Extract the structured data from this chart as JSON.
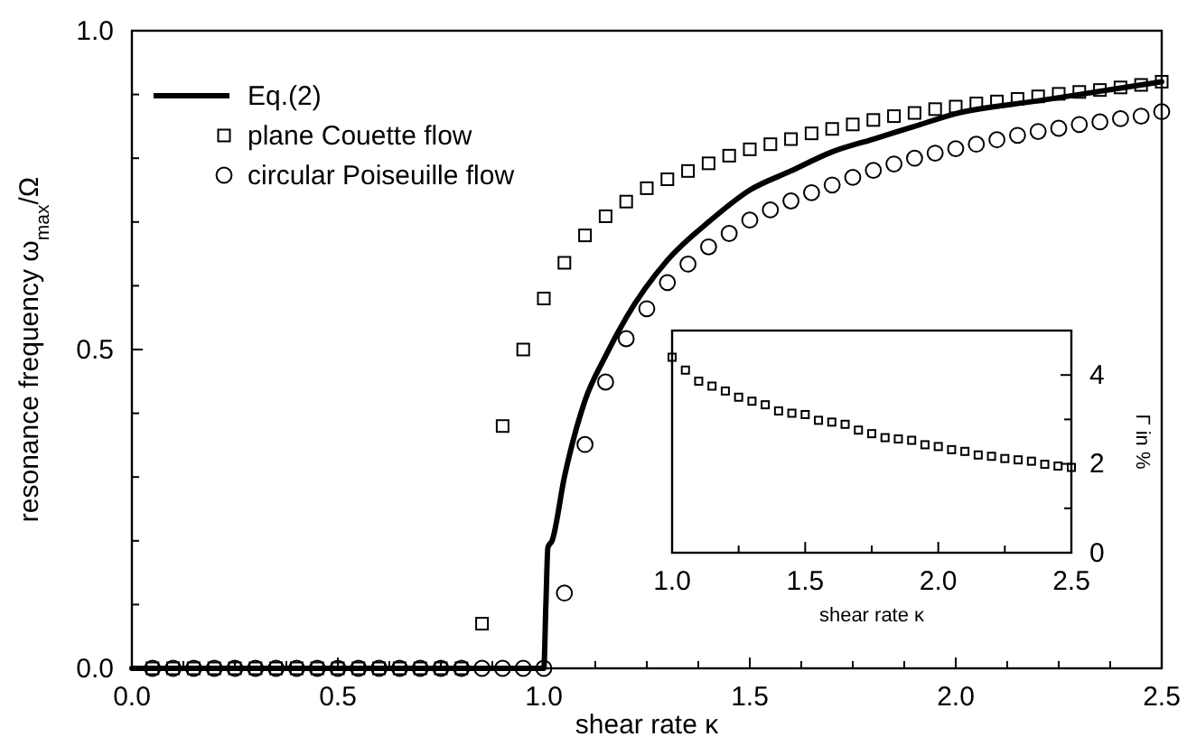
{
  "chart_data": [
    {
      "type": "scatter",
      "xlabel": "shear rate κ",
      "ylabel": "resonance frequency ω$_{max}$/Ω",
      "legend": "top left",
      "xlim": [
        0,
        2.5
      ],
      "ylim": [
        0,
        1
      ],
      "xticks": [
        {
          "value": 0,
          "label": "0.0"
        },
        {
          "value": 0.125,
          "label": null
        },
        {
          "value": 0.25,
          "label": null
        },
        {
          "value": 0.375,
          "label": null
        },
        {
          "value": 0.5,
          "label": "0.5"
        },
        {
          "value": 0.625,
          "label": null
        },
        {
          "value": 0.75,
          "label": null
        },
        {
          "value": 0.875,
          "label": null
        },
        {
          "value": 1,
          "label": "1.0"
        },
        {
          "value": 1.125,
          "label": null
        },
        {
          "value": 1.25,
          "label": null
        },
        {
          "value": 1.375,
          "label": null
        },
        {
          "value": 1.5,
          "label": "1.5"
        },
        {
          "value": 1.625,
          "label": null
        },
        {
          "value": 1.75,
          "label": null
        },
        {
          "value": 1.875,
          "label": null
        },
        {
          "value": 2,
          "label": "2.0"
        },
        {
          "value": 2.125,
          "label": null
        },
        {
          "value": 2.25,
          "label": null
        },
        {
          "value": 2.375,
          "label": null
        },
        {
          "value": 2.5,
          "label": "2.5"
        }
      ],
      "yticks": [
        {
          "value": 0,
          "label": "0.0"
        },
        {
          "value": 0.1,
          "label": null
        },
        {
          "value": 0.2,
          "label": null
        },
        {
          "value": 0.3,
          "label": null
        },
        {
          "value": 0.4,
          "label": null
        },
        {
          "value": 0.5,
          "label": "0.5"
        },
        {
          "value": 0.6,
          "label": null
        },
        {
          "value": 0.7,
          "label": null
        },
        {
          "value": 0.8,
          "label": null
        },
        {
          "value": 0.9,
          "label": null
        },
        {
          "value": 1,
          "label": "1.0"
        }
      ],
      "series": [
        {
          "name": "Eq.(2)",
          "type": "line",
          "color": "#000000",
          "x": [
            0,
            1,
            1.005,
            1.01,
            1.02,
            1.05,
            1.1,
            1.15,
            1.2,
            1.3,
            1.4,
            1.5,
            1.6,
            1.7,
            1.8,
            1.9,
            2,
            2.2,
            2.4,
            2.5
          ],
          "values": [
            0,
            0,
            0.1,
            0.19,
            0.2,
            0.3,
            0.42,
            0.49,
            0.55,
            0.64,
            0.7,
            0.75,
            0.78,
            0.81,
            0.83,
            0.85,
            0.87,
            0.89,
            0.91,
            0.92
          ]
        },
        {
          "name": "plane Couette flow",
          "marker": "square",
          "color": "#000000",
          "x": [
            0.05,
            0.1,
            0.15,
            0.2,
            0.25,
            0.3,
            0.35,
            0.4,
            0.45,
            0.5,
            0.55,
            0.6,
            0.65,
            0.7,
            0.75,
            0.8,
            0.85,
            0.9,
            0.95,
            1,
            1.05,
            1.1,
            1.15,
            1.2,
            1.25,
            1.3,
            1.35,
            1.4,
            1.45,
            1.5,
            1.55,
            1.6,
            1.65,
            1.7,
            1.75,
            1.8,
            1.85,
            1.9,
            1.95,
            2,
            2.05,
            2.1,
            2.15,
            2.2,
            2.25,
            2.3,
            2.35,
            2.4,
            2.45,
            2.5
          ],
          "values": [
            0,
            0,
            0,
            0,
            0,
            0,
            0,
            0,
            0,
            0,
            0,
            0,
            0,
            0,
            0,
            0,
            0.07,
            0.38,
            0.5,
            0.58,
            0.636,
            0.679,
            0.709,
            0.732,
            0.753,
            0.767,
            0.78,
            0.792,
            0.804,
            0.814,
            0.822,
            0.83,
            0.839,
            0.846,
            0.853,
            0.86,
            0.866,
            0.871,
            0.877,
            0.881,
            0.886,
            0.889,
            0.893,
            0.897,
            0.901,
            0.904,
            0.907,
            0.911,
            0.915,
            0.92
          ]
        },
        {
          "name": "circular Poiseuille flow",
          "marker": "circle",
          "color": "#000000",
          "x": [
            0.05,
            0.1,
            0.15,
            0.2,
            0.25,
            0.3,
            0.35,
            0.4,
            0.45,
            0.5,
            0.55,
            0.6,
            0.65,
            0.7,
            0.75,
            0.8,
            0.85,
            0.9,
            0.95,
            1,
            1.05,
            1.1,
            1.15,
            1.2,
            1.25,
            1.3,
            1.35,
            1.4,
            1.45,
            1.5,
            1.55,
            1.6,
            1.65,
            1.7,
            1.75,
            1.8,
            1.85,
            1.9,
            1.95,
            2,
            2.05,
            2.1,
            2.15,
            2.2,
            2.25,
            2.3,
            2.35,
            2.4,
            2.45,
            2.5
          ],
          "values": [
            0,
            0,
            0,
            0,
            0,
            0,
            0,
            0,
            0,
            0,
            0,
            0,
            0,
            0,
            0,
            0,
            0,
            0,
            0,
            0,
            0.118,
            0.351,
            0.449,
            0.517,
            0.564,
            0.605,
            0.634,
            0.661,
            0.682,
            0.703,
            0.719,
            0.733,
            0.746,
            0.758,
            0.77,
            0.781,
            0.791,
            0.8,
            0.808,
            0.815,
            0.822,
            0.829,
            0.836,
            0.842,
            0.847,
            0.853,
            0.857,
            0.862,
            0.866,
            0.873
          ]
        }
      ]
    },
    {
      "type": "scatter",
      "marker": "square",
      "xlabel": "shear rate κ",
      "ylabel": "Γ in %",
      "xlim": [
        1,
        2.5
      ],
      "ylim": [
        0,
        5
      ],
      "xticks": [
        {
          "value": 1,
          "label": "1.0"
        },
        {
          "value": 1.25,
          "label": null
        },
        {
          "value": 1.5,
          "label": "1.5"
        },
        {
          "value": 1.75,
          "label": null
        },
        {
          "value": 2,
          "label": "2.0"
        },
        {
          "value": 2.25,
          "label": null
        },
        {
          "value": 2.5,
          "label": "2.5"
        }
      ],
      "yticks": [
        0,
        {
          "value": 1,
          "label": null
        },
        2,
        {
          "value": 3,
          "label": null
        },
        4
      ],
      "series": [
        {
          "color": "#000000",
          "x": [
            1,
            1.05,
            1.1,
            1.15,
            1.2,
            1.25,
            1.3,
            1.35,
            1.4,
            1.45,
            1.5,
            1.55,
            1.6,
            1.65,
            1.7,
            1.75,
            1.8,
            1.85,
            1.9,
            1.95,
            2,
            2.05,
            2.1,
            2.15,
            2.2,
            2.25,
            2.3,
            2.35,
            2.4,
            2.45,
            2.5
          ],
          "values": [
            4.4,
            4.11,
            3.86,
            3.75,
            3.64,
            3.5,
            3.41,
            3.33,
            3.19,
            3.14,
            3.11,
            2.98,
            2.94,
            2.89,
            2.76,
            2.68,
            2.59,
            2.56,
            2.53,
            2.43,
            2.39,
            2.32,
            2.28,
            2.2,
            2.17,
            2.12,
            2.09,
            2.06,
            1.99,
            1.95,
            1.92
          ]
        }
      ]
    }
  ]
}
